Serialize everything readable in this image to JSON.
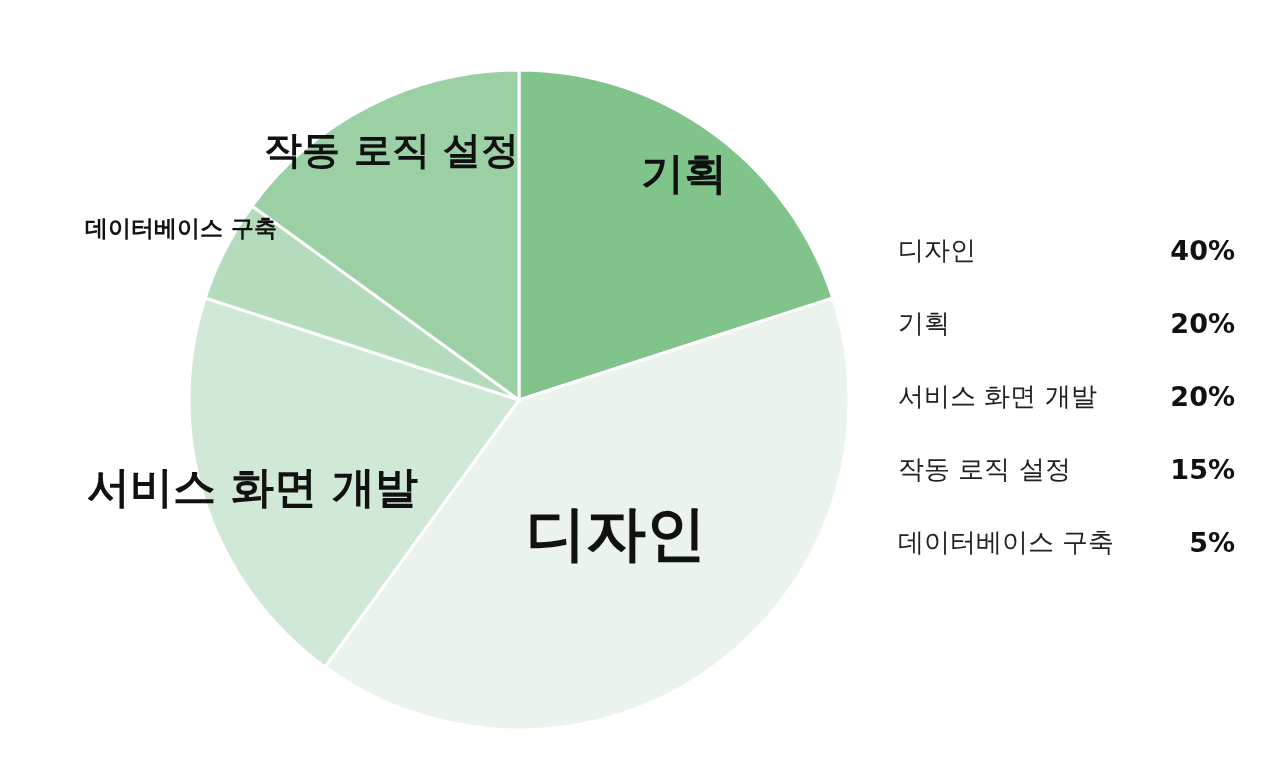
{
  "chart_data": {
    "type": "pie",
    "categories": [
      "기획",
      "디자인",
      "서비스 화면 개발",
      "데이터베이스 구축",
      "작동 로직 설정"
    ],
    "values": [
      20,
      40,
      20,
      5,
      15
    ],
    "colors": [
      "#80c48c",
      "#eaf4ec",
      "#d0e8d6",
      "#b4dcbc",
      "#9ad0a4"
    ],
    "annotations": [
      "디자인",
      "40%",
      "기획",
      "20%",
      "서비스 화면 개발",
      "20%",
      "작동 로직 설정",
      "15%",
      "데이터베이스 구축",
      "5%"
    ]
  }
}
